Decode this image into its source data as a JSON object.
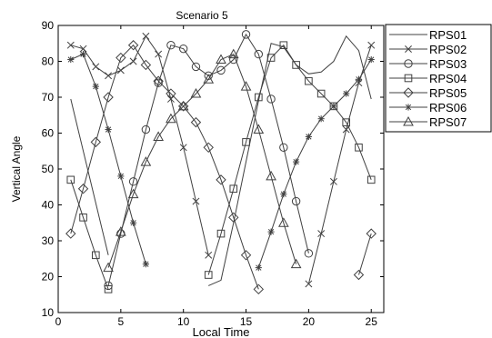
{
  "chart_data": {
    "type": "line",
    "title": "Scenario 5",
    "xlabel": "Local Time",
    "ylabel": "Vertical Angle",
    "xlim": [
      0,
      26
    ],
    "ylim": [
      10,
      90
    ],
    "xticks": [
      0,
      5,
      10,
      15,
      20,
      25
    ],
    "yticks": [
      10,
      20,
      30,
      40,
      50,
      60,
      70,
      80,
      90
    ],
    "grid": false,
    "legend_position": "outside-top-right",
    "line_color": "#404040",
    "series": [
      {
        "name": "RPS01",
        "marker": "none",
        "segments": [
          [
            [
              1,
              69.5
            ],
            [
              4,
              26
            ]
          ],
          [
            [
              12,
              17.5
            ],
            [
              13,
              19
            ],
            [
              14,
              35
            ],
            [
              15,
              52
            ],
            [
              16,
              69
            ],
            [
              17,
              85
            ],
            [
              18,
              84
            ],
            [
              19,
              79
            ],
            [
              20,
              76.5
            ],
            [
              21,
              77
            ],
            [
              22,
              80
            ],
            [
              23,
              87
            ],
            [
              24,
              83
            ],
            [
              25,
              69.5
            ]
          ]
        ]
      },
      {
        "name": "RPS02",
        "marker": "x",
        "segments": [
          [
            [
              1,
              84.5
            ],
            [
              2,
              83.5
            ],
            [
              3,
              78.5
            ],
            [
              4,
              76
            ],
            [
              5,
              77.5
            ],
            [
              6,
              80
            ],
            [
              7,
              87
            ],
            [
              8,
              82
            ],
            [
              9,
              69.5
            ],
            [
              10,
              56
            ],
            [
              11,
              41
            ],
            [
              12,
              26
            ]
          ],
          [
            [
              20,
              18
            ],
            [
              21,
              32
            ],
            [
              22,
              46.5
            ],
            [
              23,
              61
            ],
            [
              24,
              74
            ],
            [
              25,
              84.5
            ]
          ]
        ]
      },
      {
        "name": "RPS03",
        "marker": "circle",
        "segments": [
          [
            [
              4,
              17.5
            ],
            [
              5,
              32
            ],
            [
              6,
              46.5
            ],
            [
              7,
              61
            ],
            [
              8,
              74
            ],
            [
              9,
              84.5
            ],
            [
              10,
              83.5
            ],
            [
              11,
              78.5
            ],
            [
              12,
              76
            ],
            [
              13,
              77.5
            ],
            [
              14,
              80.5
            ],
            [
              15,
              87.5
            ],
            [
              16,
              82
            ],
            [
              17,
              69.5
            ],
            [
              18,
              56
            ],
            [
              19,
              41
            ],
            [
              20,
              26.5
            ]
          ]
        ]
      },
      {
        "name": "RPS04",
        "marker": "square",
        "segments": [
          [
            [
              1,
              47
            ],
            [
              2,
              36.5
            ],
            [
              3,
              26
            ],
            [
              4,
              16.5
            ]
          ],
          [
            [
              12,
              20.5
            ],
            [
              13,
              32
            ],
            [
              14,
              44.5
            ],
            [
              15,
              57.5
            ],
            [
              16,
              70
            ],
            [
              17,
              81
            ],
            [
              18,
              84.5
            ],
            [
              19,
              79
            ],
            [
              20,
              74.5
            ],
            [
              21,
              71
            ],
            [
              22,
              67.5
            ],
            [
              23,
              63
            ],
            [
              24,
              56
            ],
            [
              25,
              47
            ]
          ]
        ]
      },
      {
        "name": "RPS05",
        "marker": "diamond",
        "segments": [
          [
            [
              1,
              32
            ],
            [
              2,
              44.5
            ],
            [
              3,
              57.5
            ],
            [
              4,
              70
            ],
            [
              5,
              81
            ],
            [
              6,
              84.5
            ],
            [
              7,
              79
            ],
            [
              8,
              74.5
            ],
            [
              9,
              71
            ],
            [
              10,
              67.5
            ],
            [
              11,
              63
            ],
            [
              12,
              56
            ],
            [
              13,
              47
            ],
            [
              14,
              36.5
            ],
            [
              15,
              26
            ],
            [
              16,
              16.5
            ]
          ],
          [
            [
              24,
              20.5
            ],
            [
              25,
              32
            ]
          ]
        ]
      },
      {
        "name": "RPS06",
        "marker": "star",
        "segments": [
          [
            [
              1,
              80.5
            ],
            [
              2,
              82
            ],
            [
              3,
              73
            ],
            [
              4,
              61
            ],
            [
              5,
              48
            ],
            [
              6,
              35
            ],
            [
              7,
              23.5
            ]
          ],
          [
            [
              16,
              22.5
            ],
            [
              17,
              32.5
            ],
            [
              18,
              43
            ],
            [
              19,
              52
            ],
            [
              20,
              59
            ],
            [
              21,
              64
            ],
            [
              22,
              67.5
            ],
            [
              23,
              71
            ],
            [
              24,
              75
            ],
            [
              25,
              80.5
            ]
          ]
        ]
      },
      {
        "name": "RPS07",
        "marker": "triangle",
        "segments": [
          [
            [
              4,
              22.5
            ],
            [
              5,
              32.5
            ],
            [
              6,
              43
            ],
            [
              7,
              52
            ],
            [
              8,
              59
            ],
            [
              9,
              64
            ],
            [
              10,
              67.5
            ],
            [
              11,
              71
            ],
            [
              12,
              75
            ],
            [
              13,
              80.5
            ],
            [
              14,
              82
            ],
            [
              15,
              73
            ],
            [
              16,
              61
            ],
            [
              17,
              48
            ],
            [
              18,
              35
            ],
            [
              19,
              23.5
            ]
          ]
        ]
      }
    ]
  }
}
